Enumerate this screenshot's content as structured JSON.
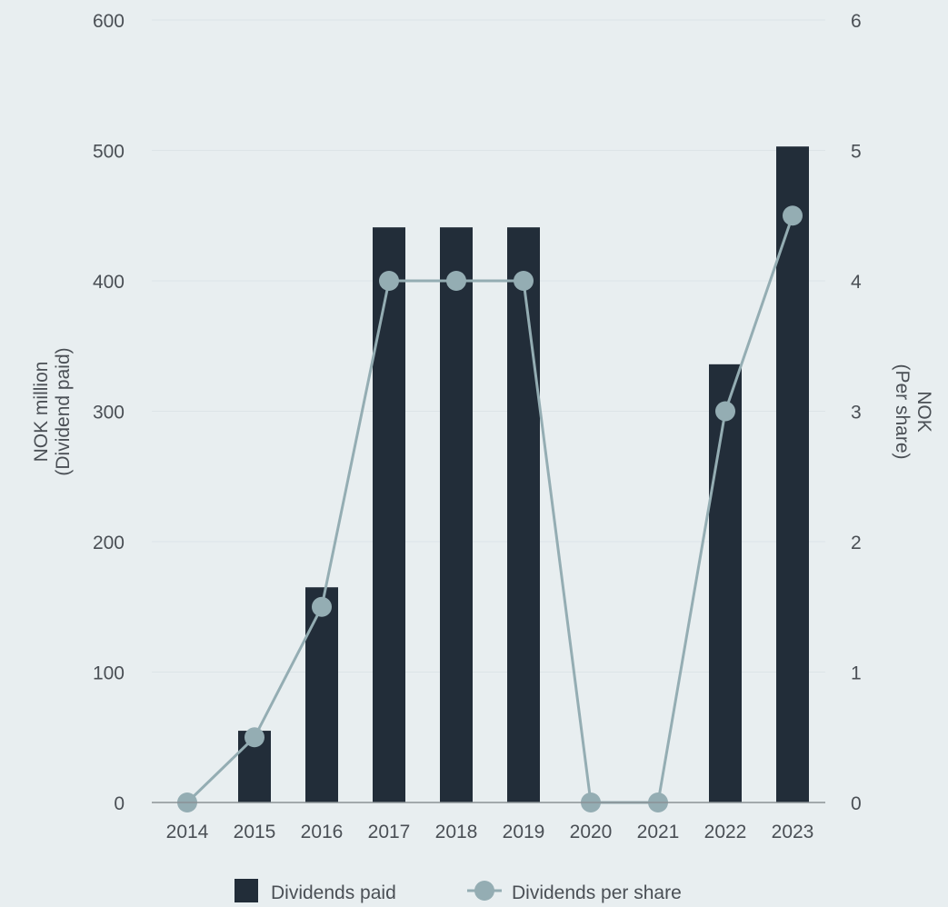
{
  "chart_data": {
    "type": "bar",
    "categories": [
      "2014",
      "2015",
      "2016",
      "2017",
      "2018",
      "2019",
      "2020",
      "2021",
      "2022",
      "2023"
    ],
    "series": [
      {
        "name": "Dividends paid",
        "kind": "bar",
        "axis": "left",
        "values": [
          0,
          55,
          165,
          441,
          441,
          441,
          0,
          0,
          336,
          503
        ]
      },
      {
        "name": "Dividends per share",
        "kind": "line",
        "axis": "right",
        "values": [
          0,
          0.5,
          1.5,
          4,
          4,
          4,
          0,
          0,
          3,
          4.5
        ]
      }
    ],
    "y_left": {
      "title_line1": "NOK million",
      "title_line2": "(Dividend paid)",
      "range": [
        0,
        600
      ],
      "ticks": [
        "0",
        "100",
        "200",
        "300",
        "400",
        "500",
        "600"
      ]
    },
    "y_right": {
      "title_line1": "NOK",
      "title_line2": "(Per share)",
      "range": [
        0,
        6
      ],
      "ticks": [
        "0",
        "1",
        "2",
        "3",
        "4",
        "5",
        "6"
      ]
    },
    "grid": true,
    "legend_position": "bottom-center",
    "colors": {
      "background": "#e8eef0",
      "bar": "#222d39",
      "line": "#94adb3",
      "grid": "#dde4e7",
      "axis": "#8a9296",
      "text": "#4a4f55"
    }
  }
}
